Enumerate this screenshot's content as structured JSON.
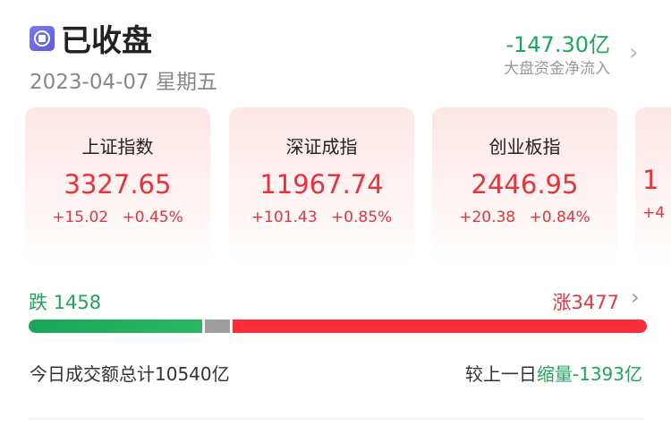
{
  "header": {
    "status_icon": "market-closed-icon",
    "title": "已收盘",
    "date": "2023-04-07",
    "weekday": "星期五",
    "net_flow": "-147.30亿",
    "net_flow_label": "大盘资金净流入"
  },
  "indices": [
    {
      "name": "上证指数",
      "value": "3327.65",
      "change": "+15.02",
      "pct": "+0.45%"
    },
    {
      "name": "深证成指",
      "value": "11967.74",
      "change": "+101.43",
      "pct": "+0.85%"
    },
    {
      "name": "创业板指",
      "value": "2446.95",
      "change": "+20.38",
      "pct": "+0.84%"
    },
    {
      "name": "",
      "value": "1",
      "change": "+4",
      "pct": ""
    }
  ],
  "breadth": {
    "down_label": "跌",
    "down": "1458",
    "up_label": "涨",
    "up": "3477",
    "flat_fraction": 0.04
  },
  "volume": {
    "text": "今日成交额总计10540亿",
    "compare_prefix": "较上一日",
    "compare_word": "缩量",
    "compare_value": "-1393亿"
  },
  "colors": {
    "up": "#e8323c",
    "down": "#1fa65a",
    "flat": "#9e9e9e"
  }
}
